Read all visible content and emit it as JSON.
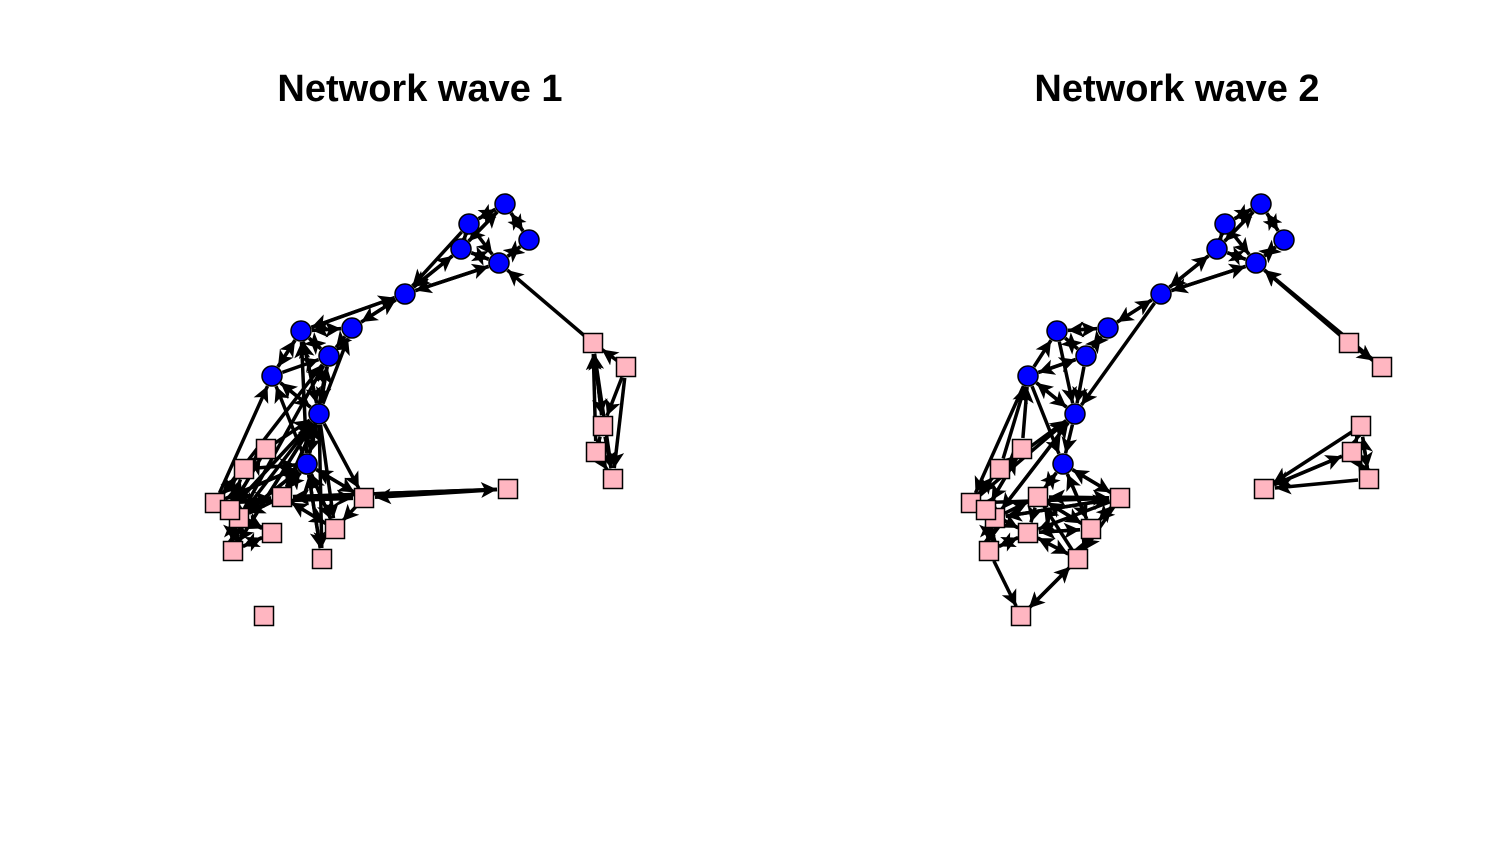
{
  "panels": [
    {
      "title": "Network wave 1",
      "nodes": [
        {
          "id": "c1",
          "shape": "circle",
          "color": "#0000ff"
        },
        {
          "id": "c2",
          "shape": "circle",
          "color": "#0000ff"
        },
        {
          "id": "c3",
          "shape": "circle",
          "color": "#0000ff"
        },
        {
          "id": "c4",
          "shape": "circle",
          "color": "#0000ff"
        },
        {
          "id": "c5",
          "shape": "circle",
          "color": "#0000ff"
        },
        {
          "id": "c6",
          "shape": "circle",
          "color": "#0000ff"
        },
        {
          "id": "c7",
          "shape": "circle",
          "color": "#0000ff"
        },
        {
          "id": "c8",
          "shape": "circle",
          "color": "#0000ff"
        },
        {
          "id": "c9",
          "shape": "circle",
          "color": "#0000ff"
        },
        {
          "id": "c10",
          "shape": "circle",
          "color": "#0000ff"
        },
        {
          "id": "c11",
          "shape": "circle",
          "color": "#0000ff"
        },
        {
          "id": "c12",
          "shape": "circle",
          "color": "#0000ff"
        },
        {
          "id": "c13",
          "shape": "circle",
          "color": "#0000ff"
        },
        {
          "id": "s1",
          "shape": "square",
          "color": "#ffb6c1"
        },
        {
          "id": "s2",
          "shape": "square",
          "color": "#ffb6c1"
        },
        {
          "id": "s3",
          "shape": "square",
          "color": "#ffb6c1"
        },
        {
          "id": "s4",
          "shape": "square",
          "color": "#ffb6c1"
        },
        {
          "id": "s5",
          "shape": "square",
          "color": "#ffb6c1"
        },
        {
          "id": "s6",
          "shape": "square",
          "color": "#ffb6c1"
        },
        {
          "id": "s7",
          "shape": "square",
          "color": "#ffb6c1"
        },
        {
          "id": "s8",
          "shape": "square",
          "color": "#ffb6c1"
        },
        {
          "id": "s9",
          "shape": "square",
          "color": "#ffb6c1"
        },
        {
          "id": "s10",
          "shape": "square",
          "color": "#ffb6c1"
        },
        {
          "id": "s11",
          "shape": "square",
          "color": "#ffb6c1"
        },
        {
          "id": "s12",
          "shape": "square",
          "color": "#ffb6c1"
        },
        {
          "id": "s13",
          "shape": "square",
          "color": "#ffb6c1"
        },
        {
          "id": "s14",
          "shape": "square",
          "color": "#ffb6c1"
        },
        {
          "id": "s15",
          "shape": "square",
          "color": "#ffb6c1"
        },
        {
          "id": "s16",
          "shape": "square",
          "color": "#ffb6c1"
        },
        {
          "id": "s17",
          "shape": "square",
          "color": "#ffb6c1"
        }
      ],
      "edges": [
        [
          "c2",
          "c1"
        ],
        [
          "c1",
          "c2"
        ],
        [
          "c1",
          "c3"
        ],
        [
          "c3",
          "c1"
        ],
        [
          "c4",
          "c1"
        ],
        [
          "c2",
          "c4"
        ],
        [
          "c4",
          "c2"
        ],
        [
          "c4",
          "c5"
        ],
        [
          "c5",
          "c4"
        ],
        [
          "c2",
          "c5"
        ],
        [
          "c3",
          "c5"
        ],
        [
          "c5",
          "c3"
        ],
        [
          "c1",
          "c4"
        ],
        [
          "c6",
          "c5"
        ],
        [
          "c5",
          "c6"
        ],
        [
          "c6",
          "c4"
        ],
        [
          "c4",
          "c6"
        ],
        [
          "c2",
          "c6"
        ],
        [
          "c7",
          "c6"
        ],
        [
          "c6",
          "c7"
        ],
        [
          "c8",
          "c6"
        ],
        [
          "c6",
          "c8"
        ],
        [
          "c8",
          "c7"
        ],
        [
          "c7",
          "c8"
        ],
        [
          "c8",
          "c9"
        ],
        [
          "c7",
          "c9"
        ],
        [
          "c9",
          "c8"
        ],
        [
          "c10",
          "c8"
        ],
        [
          "c10",
          "c9"
        ],
        [
          "c11",
          "c8"
        ],
        [
          "c11",
          "c9"
        ],
        [
          "c11",
          "c10"
        ],
        [
          "c9",
          "c11"
        ],
        [
          "c10",
          "c11"
        ],
        [
          "c11",
          "c7"
        ],
        [
          "c8",
          "c11"
        ],
        [
          "c8",
          "c10"
        ],
        [
          "c12",
          "c11"
        ],
        [
          "c12",
          "c10"
        ],
        [
          "c12",
          "c9"
        ],
        [
          "c12",
          "c8"
        ],
        [
          "c11",
          "c12"
        ],
        [
          "s1",
          "c5"
        ],
        [
          "s2",
          "s1"
        ],
        [
          "s1",
          "s3"
        ],
        [
          "s3",
          "s1"
        ],
        [
          "s2",
          "s3"
        ],
        [
          "s4",
          "s1"
        ],
        [
          "s4",
          "s3"
        ],
        [
          "s4",
          "s5"
        ],
        [
          "s2",
          "s5"
        ],
        [
          "s3",
          "s5"
        ],
        [
          "s1",
          "s5"
        ],
        [
          "s6",
          "s7"
        ],
        [
          "s7",
          "s6"
        ],
        [
          "s6",
          "s14"
        ],
        [
          "s14",
          "s6"
        ],
        [
          "s7",
          "s10"
        ],
        [
          "s10",
          "s7"
        ],
        [
          "s13",
          "s14"
        ],
        [
          "s14",
          "s13"
        ],
        [
          "s14",
          "s11"
        ],
        [
          "s11",
          "s14"
        ],
        [
          "s11",
          "s10"
        ],
        [
          "s10",
          "s11"
        ],
        [
          "s13",
          "s11"
        ],
        [
          "s11",
          "s13"
        ],
        [
          "s13",
          "s12"
        ],
        [
          "s12",
          "s13"
        ],
        [
          "s10",
          "s12"
        ],
        [
          "s12",
          "s10"
        ],
        [
          "s14",
          "s7"
        ],
        [
          "s14",
          "s12"
        ],
        [
          "s11",
          "s12"
        ],
        [
          "s6",
          "c11"
        ],
        [
          "s7",
          "c12"
        ],
        [
          "s10",
          "c12"
        ],
        [
          "c12",
          "s10"
        ],
        [
          "s11",
          "c12"
        ],
        [
          "c12",
          "s11"
        ],
        [
          "s14",
          "c11"
        ],
        [
          "s13",
          "c11"
        ],
        [
          "c11",
          "s14"
        ],
        [
          "c11",
          "s13"
        ],
        [
          "c11",
          "s11"
        ],
        [
          "s10",
          "c10"
        ],
        [
          "s11",
          "c9"
        ],
        [
          "s10",
          "c9"
        ],
        [
          "c12",
          "s8"
        ],
        [
          "c11",
          "s8"
        ],
        [
          "s8",
          "c11"
        ],
        [
          "c12",
          "s9"
        ],
        [
          "s9",
          "c12"
        ],
        [
          "c11",
          "s9"
        ],
        [
          "c11",
          "s16"
        ],
        [
          "c12",
          "s16"
        ],
        [
          "s16",
          "c12"
        ],
        [
          "s8",
          "c12"
        ],
        [
          "s9",
          "s8"
        ],
        [
          "s8",
          "s9"
        ],
        [
          "s8",
          "s16"
        ],
        [
          "s16",
          "s8"
        ],
        [
          "s9",
          "s16"
        ],
        [
          "s15",
          "s8"
        ],
        [
          "s8",
          "s15"
        ],
        [
          "s15",
          "s9"
        ],
        [
          "s8",
          "s10"
        ],
        [
          "s10",
          "s8"
        ],
        [
          "s9",
          "s10"
        ],
        [
          "s8",
          "s11"
        ]
      ]
    },
    {
      "title": "Network wave 2",
      "nodes": [
        {
          "id": "c1",
          "shape": "circle",
          "color": "#0000ff"
        },
        {
          "id": "c2",
          "shape": "circle",
          "color": "#0000ff"
        },
        {
          "id": "c3",
          "shape": "circle",
          "color": "#0000ff"
        },
        {
          "id": "c4",
          "shape": "circle",
          "color": "#0000ff"
        },
        {
          "id": "c5",
          "shape": "circle",
          "color": "#0000ff"
        },
        {
          "id": "c6",
          "shape": "circle",
          "color": "#0000ff"
        },
        {
          "id": "c7",
          "shape": "circle",
          "color": "#0000ff"
        },
        {
          "id": "c8",
          "shape": "circle",
          "color": "#0000ff"
        },
        {
          "id": "c9",
          "shape": "circle",
          "color": "#0000ff"
        },
        {
          "id": "c10",
          "shape": "circle",
          "color": "#0000ff"
        },
        {
          "id": "c11",
          "shape": "circle",
          "color": "#0000ff"
        },
        {
          "id": "c12",
          "shape": "circle",
          "color": "#0000ff"
        },
        {
          "id": "s1",
          "shape": "square",
          "color": "#ffb6c1"
        },
        {
          "id": "s2",
          "shape": "square",
          "color": "#ffb6c1"
        },
        {
          "id": "s3",
          "shape": "square",
          "color": "#ffb6c1"
        },
        {
          "id": "s4",
          "shape": "square",
          "color": "#ffb6c1"
        },
        {
          "id": "s5",
          "shape": "square",
          "color": "#ffb6c1"
        },
        {
          "id": "s6",
          "shape": "square",
          "color": "#ffb6c1"
        },
        {
          "id": "s7",
          "shape": "square",
          "color": "#ffb6c1"
        },
        {
          "id": "s8",
          "shape": "square",
          "color": "#ffb6c1"
        },
        {
          "id": "s9",
          "shape": "square",
          "color": "#ffb6c1"
        },
        {
          "id": "s10",
          "shape": "square",
          "color": "#ffb6c1"
        },
        {
          "id": "s11",
          "shape": "square",
          "color": "#ffb6c1"
        },
        {
          "id": "s12",
          "shape": "square",
          "color": "#ffb6c1"
        },
        {
          "id": "s13",
          "shape": "square",
          "color": "#ffb6c1"
        },
        {
          "id": "s14",
          "shape": "square",
          "color": "#ffb6c1"
        },
        {
          "id": "s15",
          "shape": "square",
          "color": "#ffb6c1"
        },
        {
          "id": "s16",
          "shape": "square",
          "color": "#ffb6c1"
        },
        {
          "id": "s17",
          "shape": "square",
          "color": "#ffb6c1"
        },
        {
          "id": "s18",
          "shape": "square",
          "color": "#ffb6c1"
        }
      ],
      "edges": [
        [
          "c2",
          "c1"
        ],
        [
          "c1",
          "c2"
        ],
        [
          "c1",
          "c3"
        ],
        [
          "c3",
          "c1"
        ],
        [
          "c4",
          "c1"
        ],
        [
          "c2",
          "c4"
        ],
        [
          "c4",
          "c2"
        ],
        [
          "c4",
          "c5"
        ],
        [
          "c5",
          "c4"
        ],
        [
          "c2",
          "c5"
        ],
        [
          "c3",
          "c5"
        ],
        [
          "c5",
          "c3"
        ],
        [
          "c1",
          "c4"
        ],
        [
          "c6",
          "c5"
        ],
        [
          "c5",
          "c6"
        ],
        [
          "c6",
          "c4"
        ],
        [
          "c4",
          "c6"
        ],
        [
          "c7",
          "c6"
        ],
        [
          "c6",
          "c7"
        ],
        [
          "c8",
          "c7"
        ],
        [
          "c7",
          "c8"
        ],
        [
          "c8",
          "c9"
        ],
        [
          "c9",
          "c8"
        ],
        [
          "c9",
          "c7"
        ],
        [
          "c7",
          "c9"
        ],
        [
          "c10",
          "c9"
        ],
        [
          "c9",
          "c10"
        ],
        [
          "c10",
          "c8"
        ],
        [
          "c8",
          "c11"
        ],
        [
          "c9",
          "c11"
        ],
        [
          "c6",
          "c11"
        ],
        [
          "c10",
          "c11"
        ],
        [
          "c11",
          "c10"
        ],
        [
          "c10",
          "c12"
        ],
        [
          "c11",
          "c12"
        ],
        [
          "s1",
          "c5"
        ],
        [
          "s2",
          "c5"
        ],
        [
          "s1",
          "s2"
        ],
        [
          "s3",
          "s4"
        ],
        [
          "s4",
          "s3"
        ],
        [
          "s3",
          "s5"
        ],
        [
          "s5",
          "s3"
        ],
        [
          "s4",
          "s5"
        ],
        [
          "s5",
          "s4"
        ],
        [
          "s3",
          "s6"
        ],
        [
          "s4",
          "s6"
        ],
        [
          "s5",
          "s6"
        ],
        [
          "s6",
          "s4"
        ],
        [
          "s7",
          "s8"
        ],
        [
          "s8",
          "s7"
        ],
        [
          "s7",
          "s15"
        ],
        [
          "s15",
          "s7"
        ],
        [
          "s8",
          "s10"
        ],
        [
          "s10",
          "s8"
        ],
        [
          "s14",
          "s15"
        ],
        [
          "s15",
          "s14"
        ],
        [
          "s15",
          "s12"
        ],
        [
          "s12",
          "s15"
        ],
        [
          "s12",
          "s10"
        ],
        [
          "s10",
          "s12"
        ],
        [
          "s14",
          "s12"
        ],
        [
          "s12",
          "s14"
        ],
        [
          "s14",
          "s13"
        ],
        [
          "s13",
          "s14"
        ],
        [
          "s10",
          "s13"
        ],
        [
          "s13",
          "s10"
        ],
        [
          "s11",
          "s13"
        ],
        [
          "s11",
          "s12"
        ],
        [
          "s11",
          "s10"
        ],
        [
          "s12",
          "s11"
        ],
        [
          "s11",
          "s16"
        ],
        [
          "s16",
          "s11"
        ],
        [
          "s13",
          "s16"
        ],
        [
          "s16",
          "s13"
        ],
        [
          "s7",
          "c10"
        ],
        [
          "s8",
          "c11"
        ],
        [
          "s10",
          "c11"
        ],
        [
          "s12",
          "c11"
        ],
        [
          "c11",
          "s12"
        ],
        [
          "s11",
          "c12"
        ],
        [
          "s16",
          "c12"
        ],
        [
          "c12",
          "s16"
        ],
        [
          "c10",
          "s10"
        ],
        [
          "s8",
          "c10"
        ],
        [
          "c12",
          "s9"
        ],
        [
          "s9",
          "c12"
        ],
        [
          "c12",
          "s11"
        ],
        [
          "s11",
          "s9"
        ],
        [
          "s9",
          "s11"
        ],
        [
          "s12",
          "s9"
        ],
        [
          "s9",
          "s16"
        ],
        [
          "s16",
          "s9"
        ],
        [
          "s17",
          "s16"
        ],
        [
          "s16",
          "s17"
        ],
        [
          "s17",
          "s9"
        ],
        [
          "s13",
          "s17"
        ],
        [
          "s17",
          "s13"
        ],
        [
          "s14",
          "s18"
        ],
        [
          "s18",
          "s17"
        ],
        [
          "s17",
          "s18"
        ],
        [
          "s11",
          "s17"
        ],
        [
          "s9",
          "s13"
        ]
      ]
    }
  ]
}
